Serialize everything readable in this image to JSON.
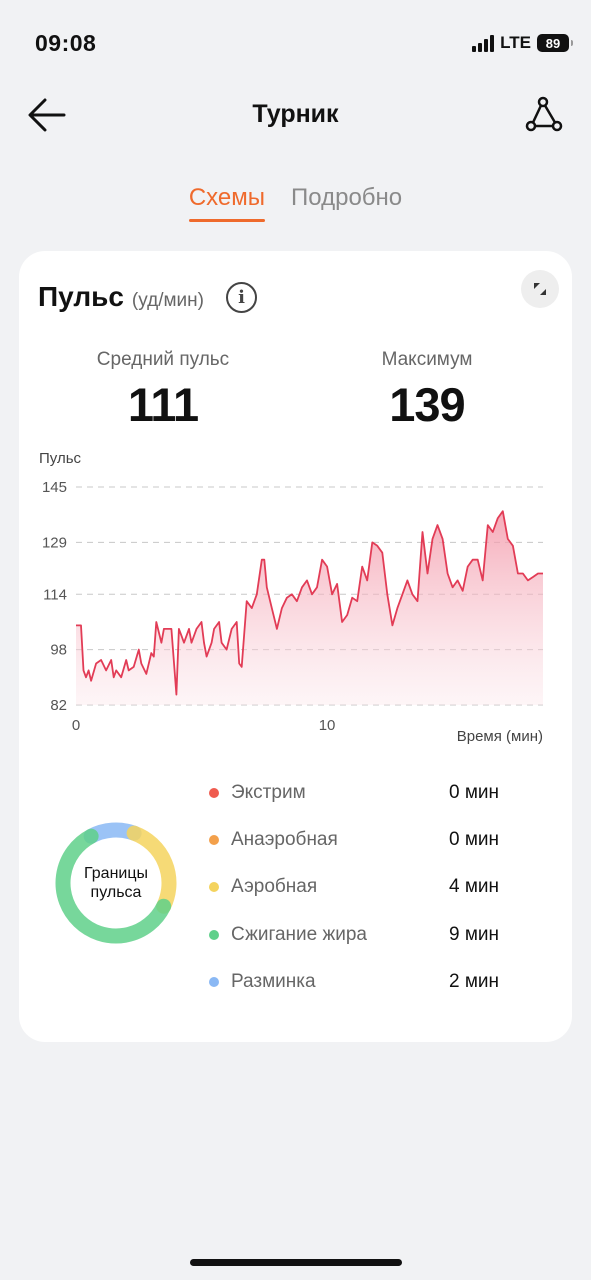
{
  "status": {
    "time": "09:08",
    "network": "LTE",
    "battery": "89"
  },
  "nav": {
    "title": "Турник"
  },
  "tabs": [
    {
      "label": "Схемы",
      "active": true
    },
    {
      "label": "Подробно",
      "active": false
    }
  ],
  "card": {
    "title": "Пульс",
    "unit": "(уд/мин)",
    "avg_label": "Средний пульс",
    "avg_value": "111",
    "max_label": "Максимум",
    "max_value": "139"
  },
  "chart_data": {
    "type": "area",
    "ylabel": "Пульс",
    "xlabel": "Время (мин)",
    "yticks": [
      145,
      129,
      114,
      98,
      82
    ],
    "xticks": [
      0,
      10
    ],
    "ylim": [
      82,
      145
    ],
    "xlim": [
      0,
      18.6
    ],
    "grid": true,
    "line_color": "#e23c56",
    "x": [
      0,
      0.2,
      0.3,
      0.4,
      0.5,
      0.6,
      0.8,
      1.0,
      1.2,
      1.4,
      1.5,
      1.6,
      1.8,
      2.0,
      2.1,
      2.3,
      2.5,
      2.6,
      2.8,
      3.0,
      3.1,
      3.2,
      3.4,
      3.5,
      3.6,
      3.8,
      4.0,
      4.1,
      4.2,
      4.3,
      4.5,
      4.6,
      4.8,
      5.0,
      5.1,
      5.2,
      5.4,
      5.5,
      5.7,
      5.8,
      6.0,
      6.2,
      6.4,
      6.5,
      6.6,
      6.8,
      7.0,
      7.2,
      7.4,
      7.5,
      7.6,
      7.8,
      8.0,
      8.2,
      8.4,
      8.6,
      8.8,
      9.0,
      9.2,
      9.4,
      9.6,
      9.8,
      10.0,
      10.2,
      10.4,
      10.6,
      10.8,
      11.0,
      11.2,
      11.4,
      11.6,
      11.8,
      12.0,
      12.2,
      12.4,
      12.6,
      12.8,
      13.0,
      13.2,
      13.4,
      13.6,
      13.8,
      14.0,
      14.2,
      14.4,
      14.6,
      14.8,
      15.0,
      15.2,
      15.4,
      15.6,
      15.8,
      16.0,
      16.2,
      16.4,
      16.6,
      16.8,
      17.0,
      17.2,
      17.4,
      17.6,
      17.8,
      18.0,
      18.2,
      18.4,
      18.6
    ],
    "values": [
      105,
      105,
      92,
      90,
      92,
      89,
      94,
      95,
      92,
      95,
      90,
      92,
      90,
      95,
      92,
      93,
      98,
      94,
      91,
      97,
      96,
      106,
      100,
      104,
      104,
      104,
      85,
      104,
      102,
      100,
      104,
      100,
      104,
      106,
      100,
      96,
      100,
      104,
      106,
      100,
      98,
      104,
      106,
      94,
      93,
      112,
      110,
      114,
      124,
      124,
      116,
      110,
      104,
      110,
      113,
      114,
      112,
      116,
      118,
      114,
      116,
      124,
      122,
      114,
      117,
      106,
      108,
      113,
      112,
      122,
      118,
      129,
      128,
      126,
      114,
      105,
      110,
      114,
      118,
      114,
      112,
      132,
      120,
      130,
      134,
      130,
      120,
      116,
      118,
      115,
      122,
      124,
      124,
      118,
      134,
      132,
      136,
      138,
      130,
      128,
      120,
      120,
      118,
      119,
      120,
      120
    ]
  },
  "zones": [
    {
      "label": "Экстрим",
      "value": "0 мин",
      "color": "#ef5b4f",
      "minutes": 0
    },
    {
      "label": "Анаэробная",
      "value": "0 мин",
      "color": "#f3a04b",
      "minutes": 0
    },
    {
      "label": "Аэробная",
      "value": "4 мин",
      "color": "#f4d35e",
      "minutes": 4
    },
    {
      "label": "Сжигание жира",
      "value": "9 мин",
      "color": "#5fd08a",
      "minutes": 9
    },
    {
      "label": "Разминка",
      "value": "2 мин",
      "color": "#8ab8f4",
      "minutes": 2
    }
  ],
  "donut_label": "Границы пульса"
}
